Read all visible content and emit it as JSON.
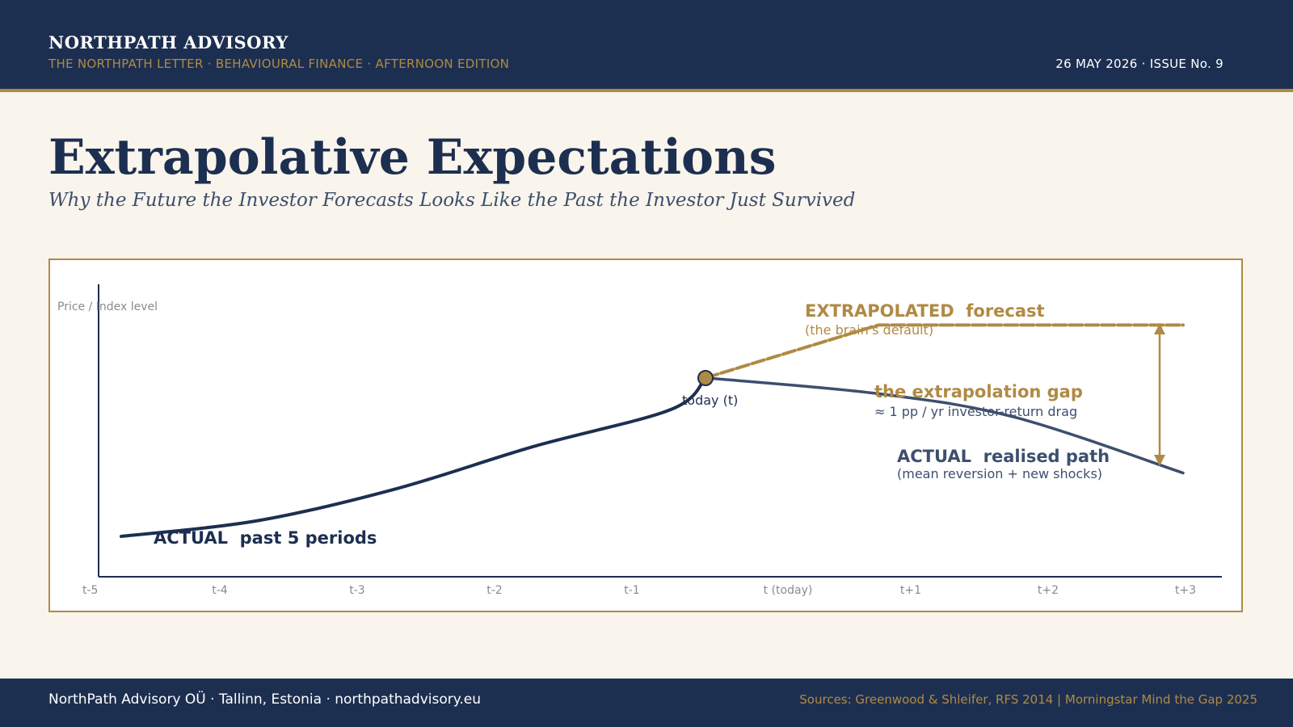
{
  "header": {
    "brand": "NORTHPATH ADVISORY",
    "subbrand": "THE NORTHPATH LETTER  ·  BEHAVIOURAL FINANCE  ·  AFTERNOON EDITION",
    "issue": "26 MAY 2026  ·  ISSUE No. 9"
  },
  "title": "Extrapolative Expectations",
  "subtitle": "Why the Future the Investor Forecasts Looks Like the Past the Investor Just Survived",
  "chart_data": {
    "type": "line",
    "ylabel": "Price / Index level",
    "x_ticks": [
      "t-5",
      "t-4",
      "t-3",
      "t-2",
      "t-1",
      "t (today)",
      "t+1",
      "t+2",
      "t+3"
    ],
    "series": [
      {
        "name": "ACTUAL  past 5 periods",
        "color": "#1d2f50",
        "style": "solid",
        "points": [
          {
            "x": "t-5",
            "y": 0.0
          },
          {
            "x": "t-4",
            "y": 0.06
          },
          {
            "x": "t-3",
            "y": 0.18
          },
          {
            "x": "t-2",
            "y": 0.34
          },
          {
            "x": "t-1",
            "y": 0.48
          },
          {
            "x": "t (today)",
            "y": 0.6
          }
        ]
      },
      {
        "name": "EXTRAPOLATED  forecast",
        "note": "(the brain's default)",
        "color": "#b08a44",
        "style": "dashed",
        "points": [
          {
            "x": "t (today)",
            "y": 0.6
          },
          {
            "x": "t+1",
            "y": 0.8
          },
          {
            "x": "t+3",
            "y": 0.8
          }
        ]
      },
      {
        "name": "ACTUAL  realised path",
        "note": "(mean reversion + new shocks)",
        "color": "#3d4f6e",
        "style": "solid",
        "points": [
          {
            "x": "t (today)",
            "y": 0.6
          },
          {
            "x": "t+1",
            "y": 0.54
          },
          {
            "x": "t+2",
            "y": 0.45
          },
          {
            "x": "t+3",
            "y": 0.24
          }
        ]
      }
    ],
    "annotations": {
      "today_label": "today (t)",
      "gap_title": "the extrapolation gap",
      "gap_note": "≈ 1 pp / yr investor-return drag"
    }
  },
  "footer": {
    "left": "NorthPath Advisory OÜ  ·  Tallinn, Estonia  ·  northpathadvisory.eu",
    "right": "Sources: Greenwood & Shleifer, RFS 2014  |  Morningstar Mind the Gap 2025"
  },
  "colors": {
    "navy": "#1d2f50",
    "gold": "#b08a44",
    "slate": "#3d4f6e",
    "cream": "#f9f5ec"
  }
}
